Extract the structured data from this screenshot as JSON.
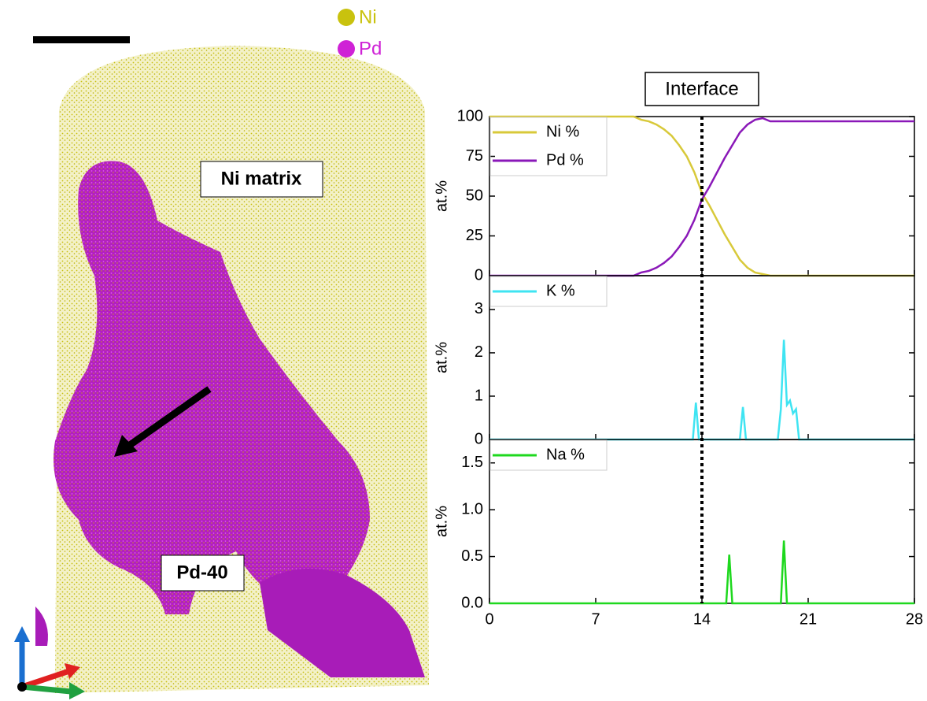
{
  "image": {
    "legend": [
      {
        "label": "Ni",
        "color": "#c9c20e"
      },
      {
        "label": "Pd",
        "color": "#cf22d6"
      }
    ],
    "labels": [
      "Ni matrix",
      "Pd-40"
    ]
  },
  "chart_data": [
    {
      "type": "line",
      "title": "Interface",
      "vline": 14,
      "ylabel": "at.%",
      "x": [
        0,
        0.5,
        1,
        1.5,
        2,
        2.5,
        3,
        3.5,
        4,
        4.5,
        5,
        5.5,
        6,
        6.5,
        7,
        7.5,
        8,
        8.5,
        9,
        9.5,
        10,
        10.5,
        11,
        11.5,
        12,
        12.5,
        13,
        13.5,
        14,
        14.5,
        15,
        15.5,
        16,
        16.5,
        17,
        17.5,
        18,
        18.5,
        19,
        19.5,
        20,
        20.5,
        21,
        21.5,
        22,
        22.5,
        23,
        23.5,
        24,
        24.5,
        25,
        25.5,
        26,
        26.5,
        27,
        27.5,
        28
      ],
      "series": [
        {
          "name": "Ni %",
          "color": "#d8c93a",
          "values": [
            100,
            100,
            100,
            100,
            100,
            100,
            100,
            100,
            100,
            100,
            100,
            100,
            100,
            100,
            100,
            100,
            100,
            100,
            100,
            100,
            98,
            97,
            95,
            92,
            88,
            82,
            75,
            65,
            52,
            44,
            35,
            26,
            18,
            10,
            5,
            2,
            1,
            0,
            0,
            0,
            0,
            0,
            0,
            0,
            0,
            0,
            0,
            0,
            0,
            0,
            0,
            0,
            0,
            0,
            0,
            0,
            0
          ]
        },
        {
          "name": "Pd %",
          "color": "#8a18b8",
          "values": [
            0,
            0,
            0,
            0,
            0,
            0,
            0,
            0,
            0,
            0,
            0,
            0,
            0,
            0,
            0,
            0,
            0,
            0,
            0,
            0,
            2,
            3,
            5,
            8,
            12,
            18,
            25,
            35,
            48,
            56,
            65,
            74,
            82,
            90,
            95,
            98,
            99,
            97,
            97,
            97,
            97,
            97,
            97,
            97,
            97,
            97,
            97,
            97,
            97,
            97,
            97,
            97,
            97,
            97,
            97,
            97,
            97
          ]
        }
      ],
      "ylim": [
        0,
        100
      ],
      "yticks": [
        0,
        25,
        50,
        75,
        100
      ]
    },
    {
      "type": "line",
      "ylabel": "at.%",
      "x": [
        0,
        13.4,
        13.6,
        13.8,
        14,
        16.5,
        16.7,
        16.9,
        19,
        19.2,
        19.4,
        19.6,
        19.8,
        20,
        20.2,
        20.4,
        28
      ],
      "series": [
        {
          "name": "K %",
          "color": "#3fe4f2",
          "values": [
            0,
            0,
            0.85,
            0,
            0,
            0,
            0.75,
            0,
            0,
            0.7,
            2.3,
            0.8,
            0.9,
            0.6,
            0.7,
            0,
            0
          ]
        }
      ],
      "ylim": [
        0,
        3.78
      ],
      "yticks": [
        0,
        1,
        2,
        3
      ]
    },
    {
      "type": "line",
      "ylabel": "at.%",
      "x": [
        0,
        15.6,
        15.8,
        16,
        19.2,
        19.4,
        19.6,
        28
      ],
      "series": [
        {
          "name": "Na %",
          "color": "#1ed81e",
          "values": [
            0,
            0,
            0.52,
            0,
            0,
            0.67,
            0,
            0
          ]
        }
      ],
      "ylim": [
        0,
        1.75
      ],
      "yticks": [
        {
          "value": 0,
          "label": "0.0"
        },
        {
          "value": 0.5,
          "label": "0.5"
        },
        {
          "value": 1,
          "label": "1.0"
        },
        {
          "value": 1.5,
          "label": "1.5"
        }
      ],
      "xlim": [
        0,
        28
      ],
      "xticks": [
        0,
        7,
        14,
        21,
        28
      ]
    }
  ]
}
